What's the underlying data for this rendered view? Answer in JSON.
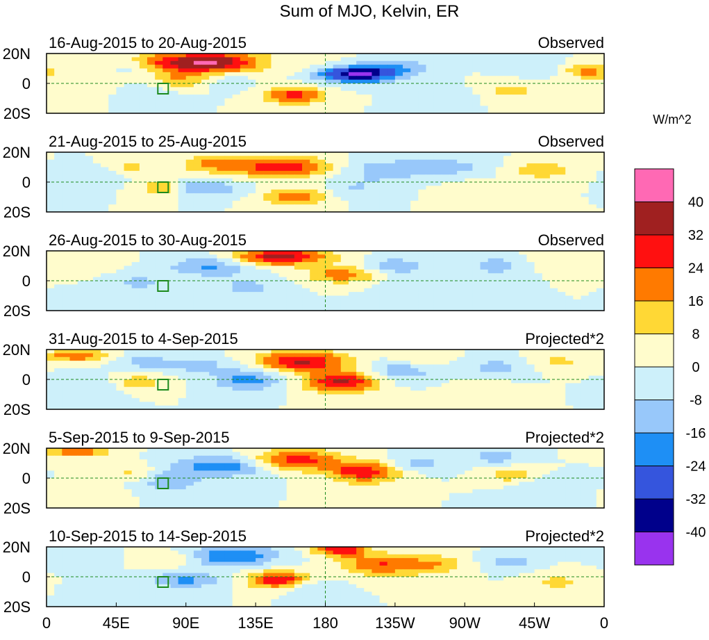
{
  "chart_data": {
    "type": "heatmap",
    "title": "Sum of MJO, Kelvin, ER",
    "units": "W/m^2",
    "x_ticks": [
      "0",
      "45E",
      "90E",
      "135E",
      "180",
      "135W",
      "90W",
      "45W",
      "0"
    ],
    "y_ticks": [
      "20N",
      "0",
      "20S"
    ],
    "xlim": [
      0,
      360
    ],
    "ylim": [
      -20,
      20
    ],
    "colorbar": {
      "levels": [
        -40,
        -32,
        -24,
        -16,
        -8,
        0,
        8,
        16,
        24,
        32,
        40
      ],
      "labels": [
        "40",
        "32",
        "24",
        "16",
        "8",
        "0",
        "-8",
        "-16",
        "-24",
        "-32",
        "-40"
      ],
      "colors": [
        "#9933ee",
        "#00008b",
        "#3555dd",
        "#1e8ff5",
        "#98c8fa",
        "#cdf0fa",
        "#fffccc",
        "#ffd835",
        "#ff7a00",
        "#ff1010",
        "#a02020",
        "#ff69b4"
      ]
    },
    "panels": [
      {
        "date_range": "16-Aug-2015 to 20-Aug-2015",
        "label": "Observed",
        "blobs": [
          [
            105,
            14,
            35,
            5,
            42
          ],
          [
            200,
            6,
            18,
            4,
            -40
          ],
          [
            160,
            -8,
            14,
            4,
            28
          ],
          [
            225,
            11,
            16,
            4,
            -14
          ],
          [
            85,
            2,
            12,
            4,
            14
          ],
          [
            140,
            14,
            14,
            4,
            -14
          ],
          [
            350,
            8,
            10,
            3,
            20
          ],
          [
            55,
            12,
            10,
            4,
            -12
          ],
          [
            120,
            2,
            10,
            5,
            -6
          ],
          [
            300,
            -5,
            14,
            5,
            10
          ],
          [
            15,
            -2,
            16,
            6,
            8
          ],
          [
            255,
            -10,
            14,
            5,
            -8
          ],
          [
            65,
            -8,
            12,
            5,
            -8
          ],
          [
            310,
            10,
            12,
            4,
            -8
          ]
        ]
      },
      {
        "date_range": "21-Aug-2015 to 25-Aug-2015",
        "label": "Observed",
        "blobs": [
          [
            150,
            10,
            22,
            5,
            30
          ],
          [
            160,
            -10,
            14,
            4,
            24
          ],
          [
            100,
            -4,
            18,
            4,
            -16
          ],
          [
            105,
            12,
            14,
            4,
            16
          ],
          [
            75,
            -4,
            10,
            4,
            20
          ],
          [
            220,
            8,
            18,
            5,
            -14
          ],
          [
            320,
            8,
            14,
            4,
            16
          ],
          [
            260,
            10,
            18,
            4,
            -12
          ],
          [
            200,
            -4,
            14,
            5,
            -8
          ],
          [
            30,
            4,
            14,
            4,
            -8
          ],
          [
            280,
            -8,
            14,
            5,
            8
          ],
          [
            55,
            10,
            10,
            4,
            10
          ]
        ]
      },
      {
        "date_range": "26-Aug-2015 to 30-Aug-2015",
        "label": "Observed",
        "blobs": [
          [
            150,
            16,
            22,
            4,
            36
          ],
          [
            105,
            10,
            18,
            5,
            -18
          ],
          [
            180,
            4,
            14,
            4,
            8
          ],
          [
            195,
            4,
            14,
            4,
            16
          ],
          [
            225,
            10,
            14,
            4,
            -14
          ],
          [
            130,
            -4,
            16,
            5,
            -10
          ],
          [
            290,
            10,
            12,
            4,
            -14
          ],
          [
            60,
            -2,
            12,
            5,
            -10
          ],
          [
            240,
            -6,
            16,
            6,
            -8
          ],
          [
            330,
            14,
            12,
            4,
            8
          ],
          [
            30,
            12,
            12,
            4,
            8
          ]
        ]
      },
      {
        "date_range": "31-Aug-2015 to 4-Sep-2015",
        "label": "Projected*2",
        "blobs": [
          [
            165,
            12,
            20,
            5,
            34
          ],
          [
            190,
            -2,
            16,
            5,
            34
          ],
          [
            130,
            0,
            16,
            5,
            -20
          ],
          [
            95,
            10,
            16,
            4,
            -12
          ],
          [
            20,
            16,
            14,
            3,
            24
          ],
          [
            230,
            6,
            14,
            5,
            -14
          ],
          [
            60,
            -2,
            12,
            4,
            14
          ],
          [
            290,
            8,
            14,
            4,
            -12
          ],
          [
            240,
            14,
            12,
            4,
            10
          ],
          [
            330,
            12,
            12,
            4,
            10
          ],
          [
            60,
            12,
            12,
            4,
            -10
          ],
          [
            30,
            -6,
            14,
            5,
            -8
          ],
          [
            280,
            -10,
            14,
            5,
            8
          ]
        ]
      },
      {
        "date_range": "5-Sep-2015 to 9-Sep-2015",
        "label": "Projected*2",
        "blobs": [
          [
            160,
            12,
            20,
            5,
            30
          ],
          [
            205,
            4,
            16,
            5,
            30
          ],
          [
            115,
            8,
            22,
            5,
            -22
          ],
          [
            80,
            -2,
            14,
            5,
            -14
          ],
          [
            20,
            18,
            14,
            3,
            22
          ],
          [
            240,
            10,
            14,
            4,
            -12
          ],
          [
            300,
            2,
            12,
            4,
            14
          ],
          [
            290,
            14,
            12,
            4,
            -12
          ],
          [
            55,
            4,
            12,
            4,
            10
          ],
          [
            320,
            -6,
            14,
            5,
            -8
          ],
          [
            30,
            -10,
            12,
            4,
            8
          ]
        ]
      },
      {
        "date_range": "10-Sep-2015 to 14-Sep-2015",
        "label": "Projected*2",
        "blobs": [
          [
            150,
            -2,
            14,
            4,
            34
          ],
          [
            120,
            14,
            20,
            5,
            -24
          ],
          [
            190,
            18,
            12,
            3,
            30
          ],
          [
            215,
            8,
            18,
            5,
            24
          ],
          [
            250,
            8,
            14,
            5,
            14
          ],
          [
            90,
            -2,
            16,
            4,
            -18
          ],
          [
            80,
            12,
            12,
            4,
            10
          ],
          [
            300,
            10,
            12,
            4,
            -12
          ],
          [
            170,
            -6,
            12,
            4,
            -10
          ],
          [
            40,
            -10,
            12,
            4,
            -8
          ],
          [
            330,
            -4,
            12,
            5,
            10
          ],
          [
            20,
            12,
            12,
            4,
            -8
          ]
        ]
      }
    ]
  }
}
